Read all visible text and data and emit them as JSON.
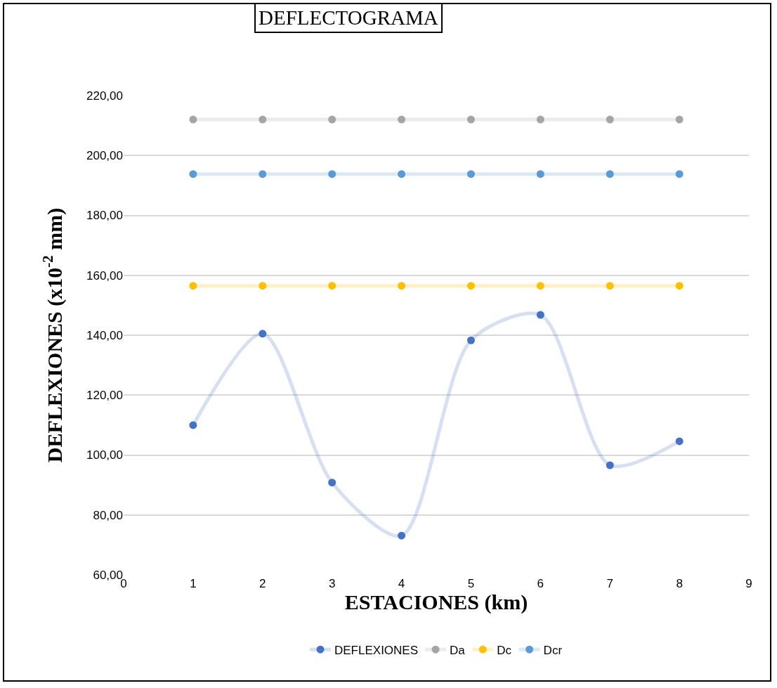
{
  "chart_data": {
    "type": "line",
    "title": "DEFLECTOGRAMA",
    "xlabel": "ESTACIONES (km)",
    "ylabel": "DEFLEXIONES (x10$^{-2}$ mm)",
    "x": [
      1,
      2,
      3,
      4,
      5,
      6,
      7,
      8
    ],
    "series": [
      {
        "name": "DEFLEXIONES",
        "color": "#4472c4",
        "values": [
          110,
          140.5,
          90.8,
          73.1,
          138.3,
          146.8,
          96.6,
          104.6
        ]
      },
      {
        "name": "Da",
        "color": "#a5a5a5",
        "values": [
          212,
          212,
          212,
          212,
          212,
          212,
          212,
          212
        ]
      },
      {
        "name": "Dc",
        "color": "#ffc000",
        "values": [
          156.5,
          156.5,
          156.5,
          156.5,
          156.5,
          156.5,
          156.5,
          156.5
        ]
      },
      {
        "name": "Dcr",
        "color": "#5b9bd5",
        "values": [
          193.8,
          193.8,
          193.8,
          193.8,
          193.8,
          193.8,
          193.8,
          193.8
        ]
      }
    ],
    "xlim": [
      0,
      9
    ],
    "xticks": [
      0,
      1,
      2,
      3,
      4,
      5,
      6,
      7,
      8,
      9
    ],
    "ylim": [
      60,
      220
    ],
    "yticks": [
      {
        "value": 60,
        "label": "60,00"
      },
      {
        "value": 80,
        "label": "80,00"
      },
      {
        "value": 100,
        "label": "100,00"
      },
      {
        "value": 120,
        "label": "120,00"
      },
      {
        "value": 140,
        "label": "140,00"
      },
      {
        "value": 160,
        "label": "160,00"
      },
      {
        "value": 180,
        "label": "180,00"
      },
      {
        "value": 200,
        "label": "200,00"
      },
      {
        "value": 220,
        "label": "220,00"
      }
    ],
    "grid": "y",
    "legend": "bottom",
    "marker": "circle",
    "line_style": "solid"
  }
}
